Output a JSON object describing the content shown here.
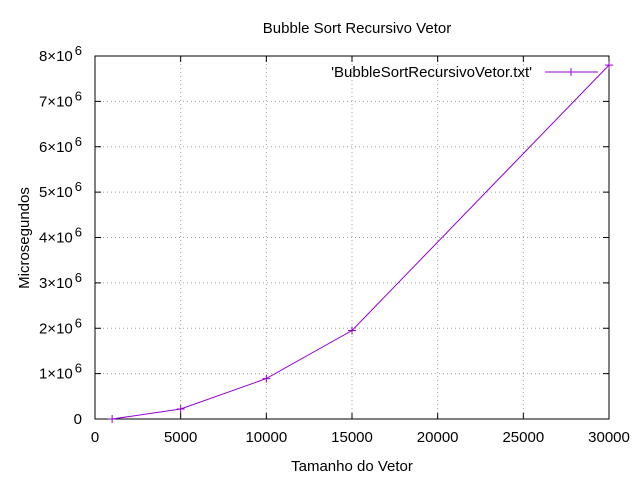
{
  "chart_data": {
    "type": "line",
    "title": "Bubble Sort Recursivo Vetor",
    "xlabel": "Tamanho do Vetor",
    "ylabel": "Microsegundos",
    "xlim": [
      0,
      30000
    ],
    "ylim": [
      0,
      8000000
    ],
    "x_ticks": [
      0,
      5000,
      10000,
      15000,
      20000,
      25000,
      30000
    ],
    "x_tick_labels": [
      "0",
      "5000",
      "10000",
      "15000",
      "20000",
      "25000",
      "30000"
    ],
    "y_ticks": [
      0,
      1000000,
      2000000,
      3000000,
      4000000,
      5000000,
      6000000,
      7000000,
      8000000
    ],
    "y_tick_labels": [
      {
        "base": "0",
        "exp": ""
      },
      {
        "base": "1×10",
        "exp": "6"
      },
      {
        "base": "2×10",
        "exp": "6"
      },
      {
        "base": "3×10",
        "exp": "6"
      },
      {
        "base": "4×10",
        "exp": "6"
      },
      {
        "base": "5×10",
        "exp": "6"
      },
      {
        "base": "6×10",
        "exp": "6"
      },
      {
        "base": "7×10",
        "exp": "6"
      },
      {
        "base": "8×10",
        "exp": "6"
      }
    ],
    "grid": true,
    "legend_position": "top-right",
    "series": [
      {
        "name": "'BubbleSortRecursivoVetor.txt'",
        "color": "#9400d3",
        "marker": "plus",
        "x": [
          1000,
          5000,
          10000,
          15000,
          30000
        ],
        "y": [
          0,
          220000,
          890000,
          1950000,
          7800000
        ]
      }
    ]
  }
}
